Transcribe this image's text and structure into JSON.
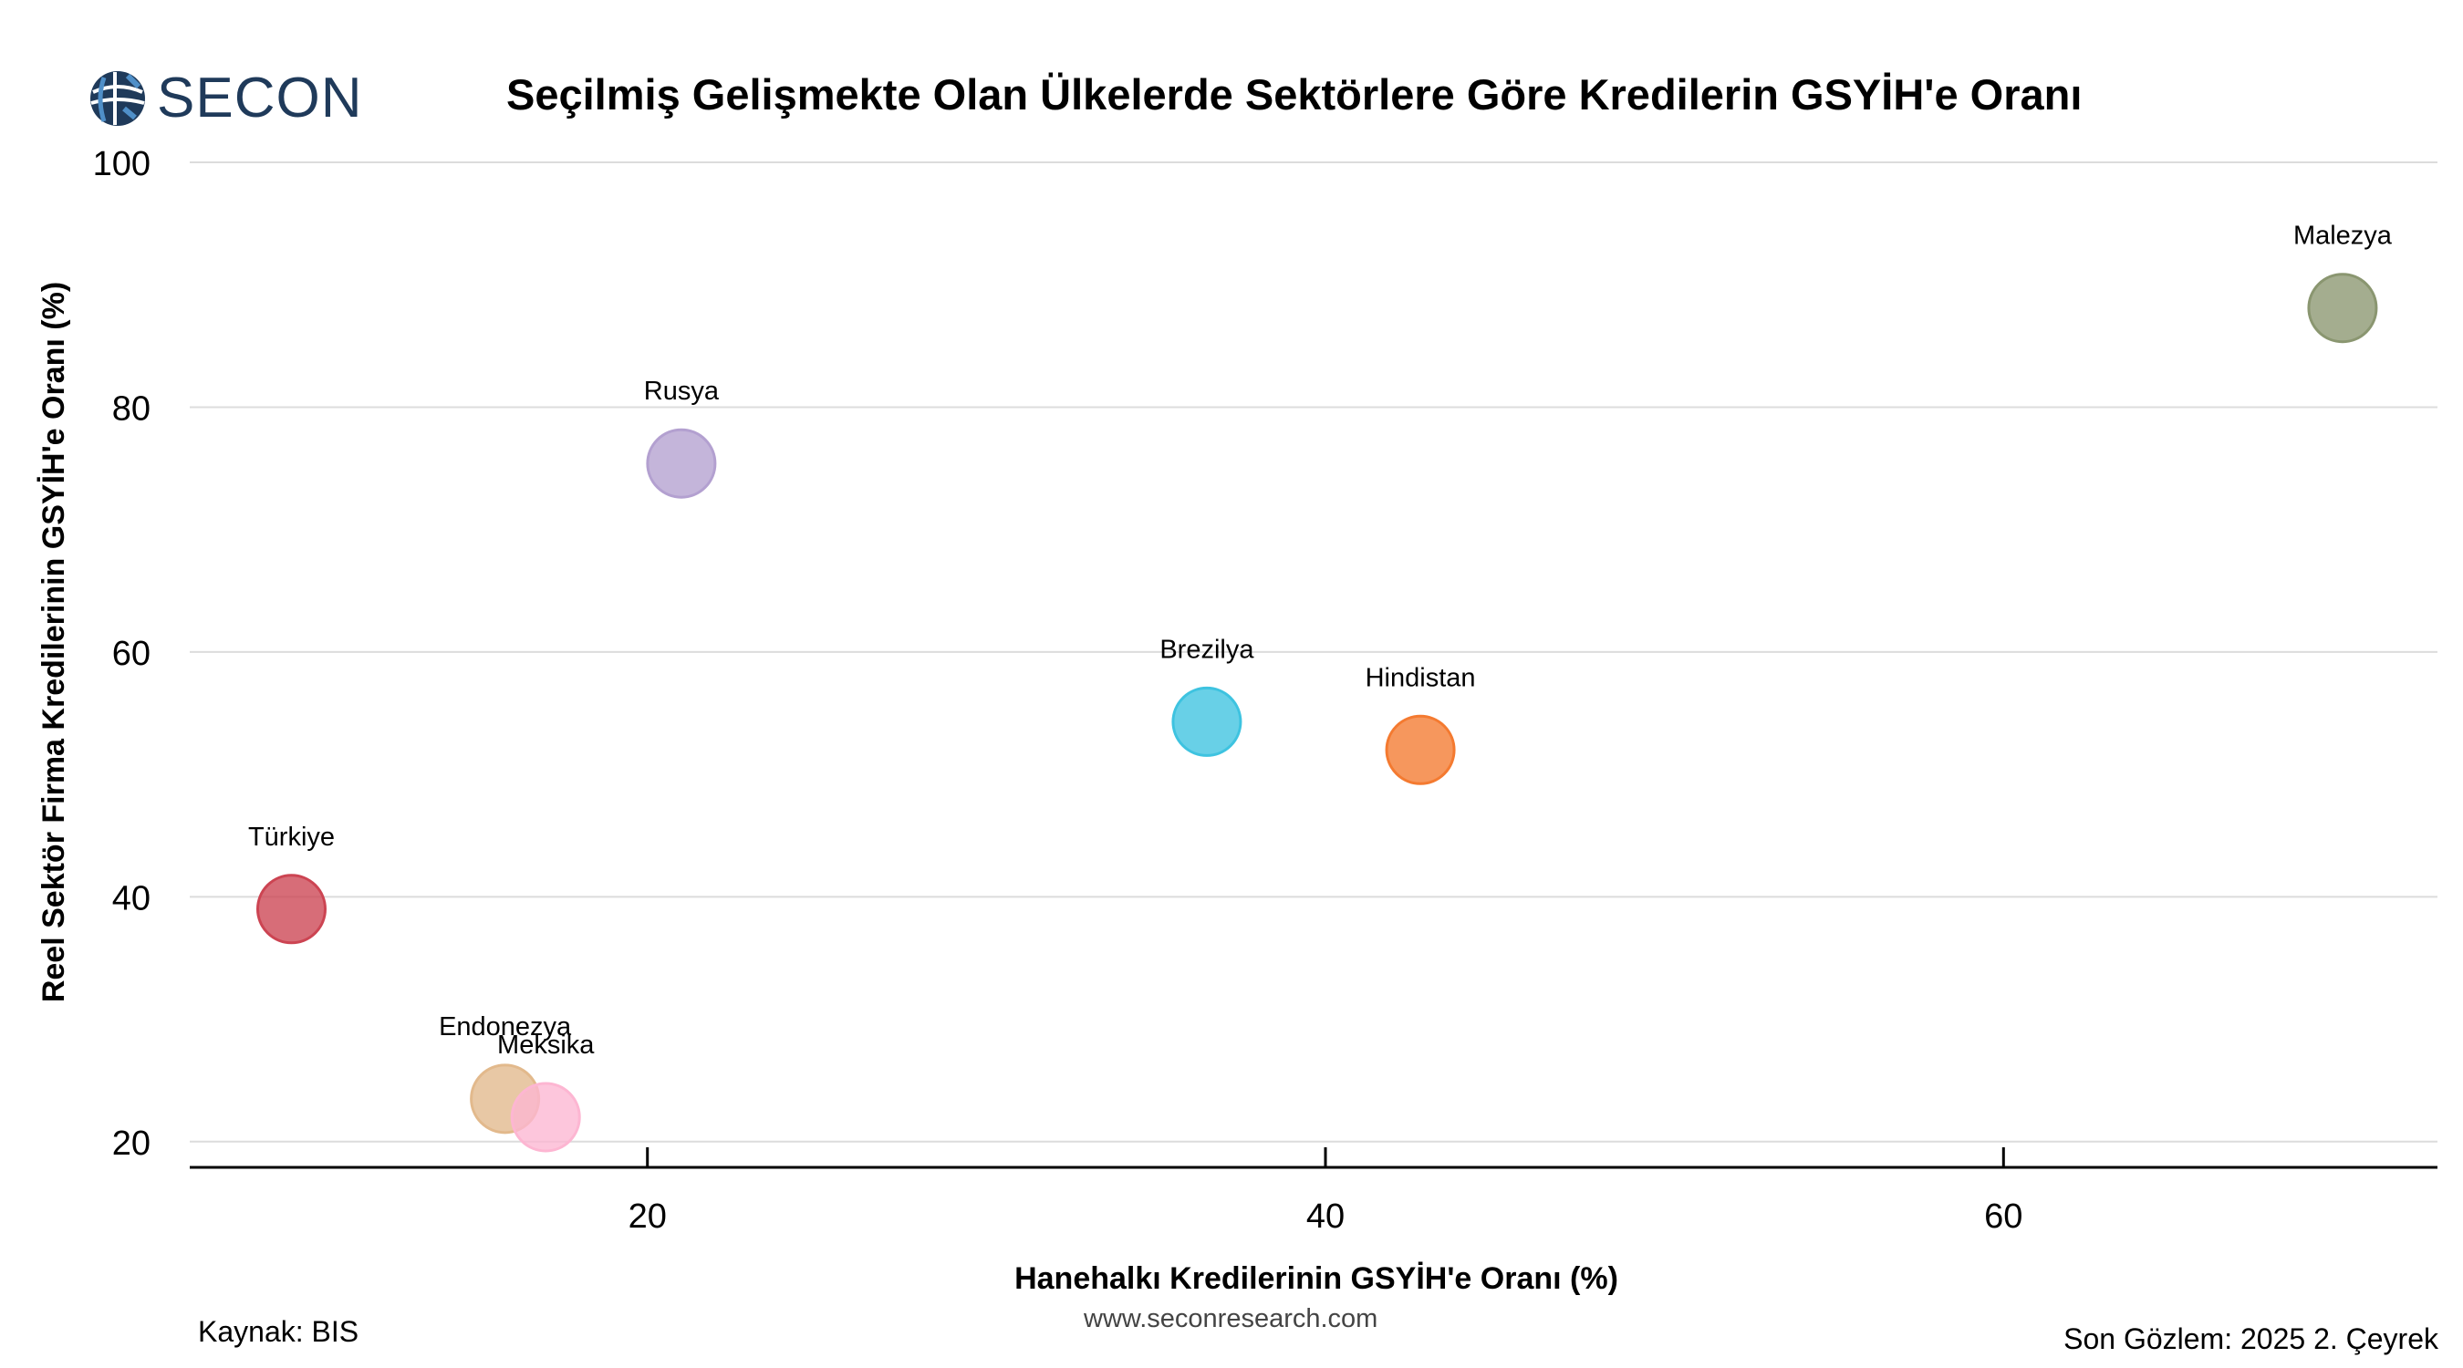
{
  "brand": {
    "name": "SECON",
    "logo_icon": "globe-icon"
  },
  "footer": {
    "source": "Kaynak: BIS",
    "website": "www.seconresearch.com",
    "last_observation": "Son Gözlem: 2025 2. Çeyrek"
  },
  "chart_data": {
    "type": "scatter",
    "title": "Seçilmiş Gelişmekte Olan Ülkelerde Sektörlere Göre Kredilerin GSYİH'e Oranı",
    "xlabel": "Hanehalkı Kredilerinin GSYİH'e Oranı (%)",
    "ylabel": "Reel Sektör Firma Kredilerinin GSYİH'e Oranı (%)",
    "xlim": [
      6.5,
      72.8
    ],
    "ylim": [
      17.9,
      100
    ],
    "xticks": [
      20,
      40,
      60
    ],
    "yticks": [
      20,
      40,
      60,
      80,
      100
    ],
    "grid": "horizontal",
    "points": [
      {
        "label": "Malezya",
        "x": 70.0,
        "y": 88.1,
        "color": "#8a9670"
      },
      {
        "label": "Rusya",
        "x": 21.0,
        "y": 75.4,
        "color": "#b3a0d0"
      },
      {
        "label": "Brezilya",
        "x": 36.5,
        "y": 54.3,
        "color": "#3ec3e0"
      },
      {
        "label": "Hindistan",
        "x": 42.8,
        "y": 52.0,
        "color": "#f47a30"
      },
      {
        "label": "Türkiye",
        "x": 9.5,
        "y": 39.0,
        "color": "#cc4452"
      },
      {
        "label": "Endonezya",
        "x": 15.8,
        "y": 23.5,
        "color": "#e2b98c"
      },
      {
        "label": "Meksika",
        "x": 17.0,
        "y": 22.0,
        "color": "#fdb6d2"
      }
    ]
  }
}
